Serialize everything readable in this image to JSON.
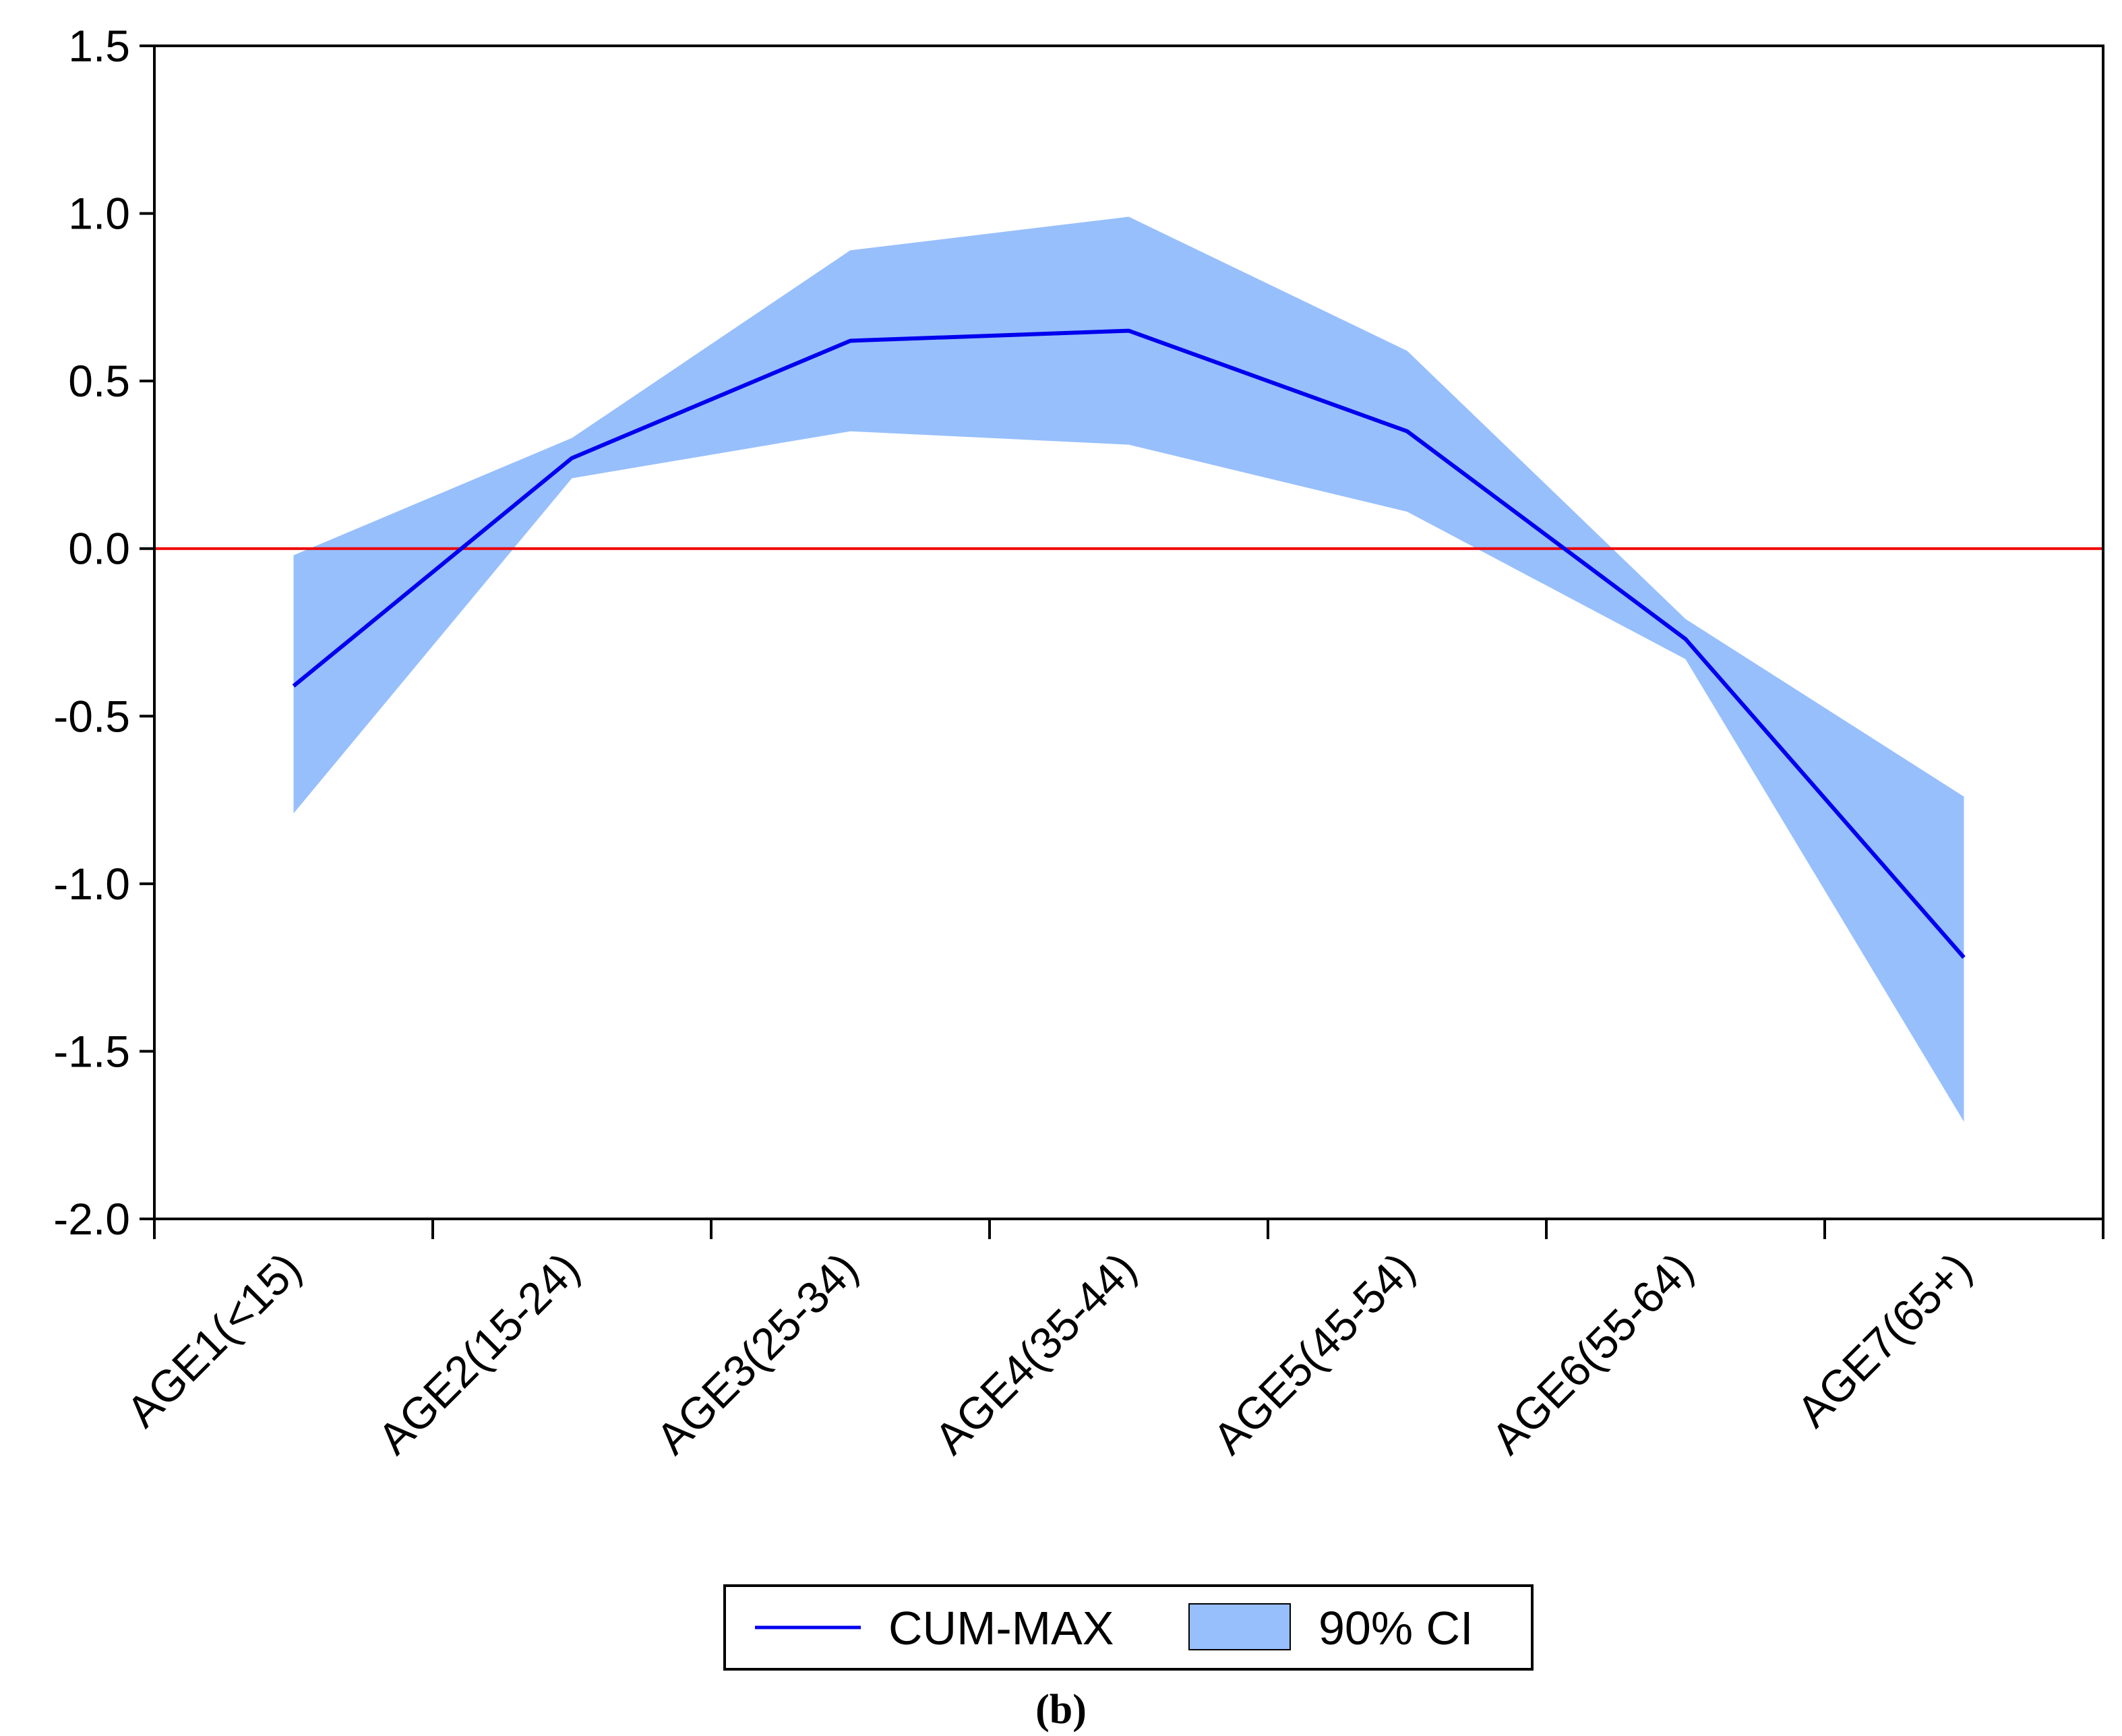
{
  "chart_data": {
    "type": "line",
    "title": "",
    "xlabel": "",
    "ylabel": "",
    "categories": [
      "AGE1(<15)",
      "AGE2(15-24)",
      "AGE3(25-34)",
      "AGE4(35-44)",
      "AGE5(45-54)",
      "AGE6(55-64)",
      "AGE7(65+)"
    ],
    "series": [
      {
        "name": "CUM-MAX",
        "values": [
          -0.41,
          0.27,
          0.62,
          0.65,
          0.35,
          -0.27,
          -1.22
        ],
        "color": "#0000ee"
      }
    ],
    "band": {
      "name": "90% CI",
      "lower": [
        -0.79,
        0.21,
        0.35,
        0.31,
        0.11,
        -0.33,
        -1.71
      ],
      "upper": [
        -0.02,
        0.33,
        0.89,
        0.99,
        0.59,
        -0.21,
        -0.74
      ],
      "color": "#97bffc"
    },
    "reference_line": {
      "value": 0.0,
      "color": "#ee0000"
    },
    "ylim": [
      -2.0,
      1.5
    ],
    "yticks": [
      1.5,
      1.0,
      0.5,
      0.0,
      -0.5,
      -1.0,
      -1.5,
      -2.0
    ],
    "ytick_labels": [
      "1.5",
      "1.0",
      "0.5",
      "0.0",
      "-0.5",
      "-1.0",
      "-1.5",
      "-2.0"
    ],
    "legend_position": "bottom-center",
    "grid": false
  },
  "caption": {
    "open": "(",
    "letter": "b",
    "close": ")"
  }
}
